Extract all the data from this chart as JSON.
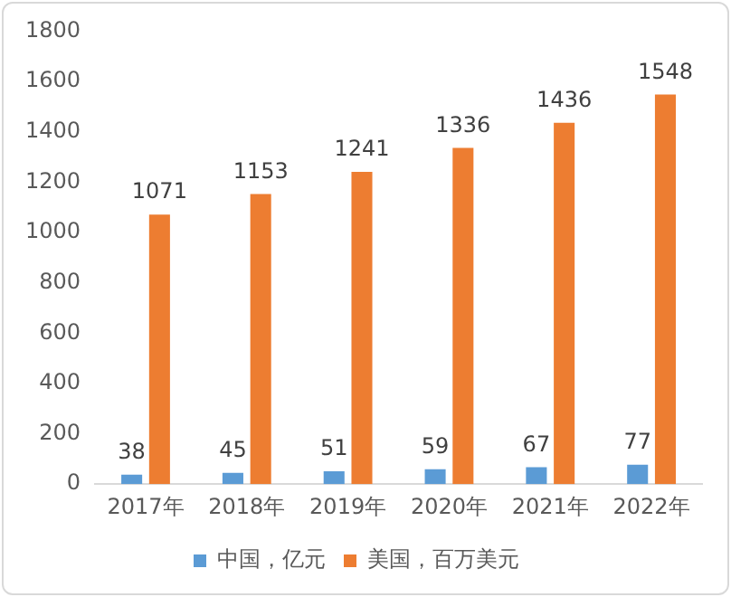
{
  "chart_data": {
    "type": "bar",
    "categories": [
      "2017年",
      "2018年",
      "2019年",
      "2020年",
      "2021年",
      "2022年"
    ],
    "series": [
      {
        "name": "中国，亿元",
        "color": "#5b9bd5",
        "values": [
          38,
          45,
          51,
          59,
          67,
          77
        ]
      },
      {
        "name": "美国，百万美元",
        "color": "#ed7d31",
        "values": [
          1071,
          1153,
          1241,
          1336,
          1436,
          1548
        ]
      }
    ],
    "ylim": [
      0,
      1800
    ],
    "yticks": [
      0,
      200,
      400,
      600,
      800,
      1000,
      1200,
      1400,
      1600,
      1800
    ],
    "grid": false,
    "legend": "bottom",
    "data_labels": true
  }
}
